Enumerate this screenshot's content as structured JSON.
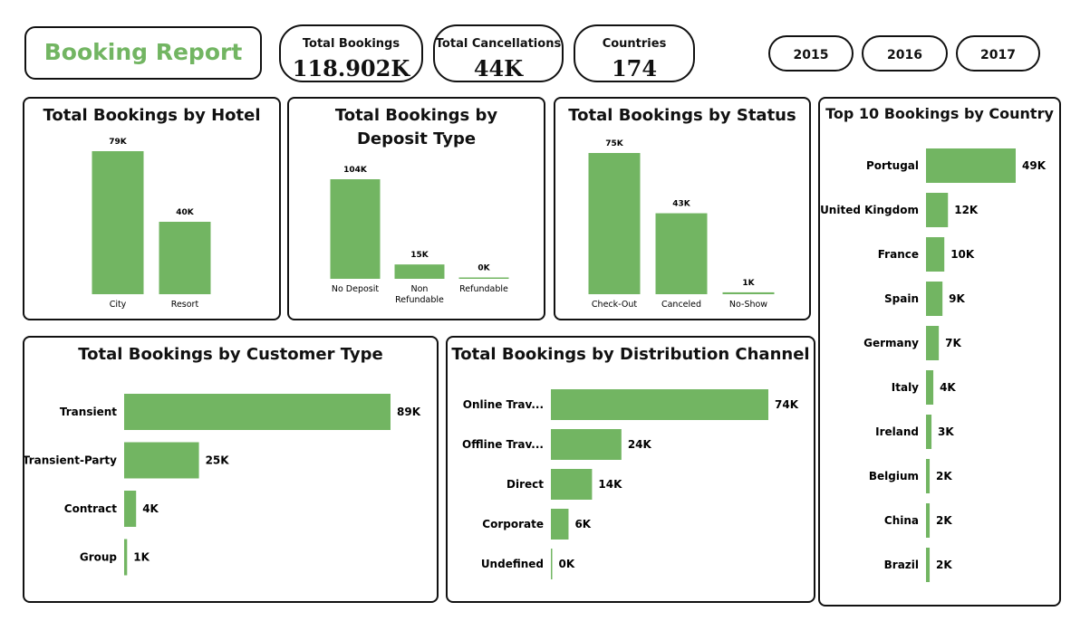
{
  "header": {
    "title": "Booking Report",
    "kpis": [
      {
        "label": "Total Bookings",
        "value": "118.902K"
      },
      {
        "label": "Total Cancellations",
        "value": "44K"
      },
      {
        "label": "Countries",
        "value": "174"
      }
    ],
    "years": [
      "2015",
      "2016",
      "2017"
    ]
  },
  "colors": {
    "bar": "#72b562",
    "title": "#72b562",
    "border": "#111111"
  },
  "chart_data": [
    {
      "id": "hotel",
      "type": "bar",
      "title": "Total Bookings by Hotel",
      "categories": [
        "City",
        "Resort"
      ],
      "values": [
        79,
        40
      ],
      "labels": [
        "79K",
        "40K"
      ]
    },
    {
      "id": "deposit",
      "type": "bar",
      "title": "Total Bookings by Deposit Type",
      "categories": [
        "No Deposit",
        "Non Refundable",
        "Refundable"
      ],
      "values": [
        104,
        15,
        0.2
      ],
      "labels": [
        "104K",
        "15K",
        "0K"
      ]
    },
    {
      "id": "status",
      "type": "bar",
      "title": "Total Bookings by Status",
      "categories": [
        "Check-Out",
        "Canceled",
        "No-Show"
      ],
      "values": [
        75,
        43,
        1
      ],
      "labels": [
        "75K",
        "43K",
        "1K"
      ]
    },
    {
      "id": "country",
      "type": "bar",
      "orientation": "horizontal",
      "title": "Top 10 Bookings by Country",
      "categories": [
        "Portugal",
        "United Kingdom",
        "France",
        "Spain",
        "Germany",
        "Italy",
        "Ireland",
        "Belgium",
        "China",
        "Brazil"
      ],
      "values": [
        49,
        12,
        10,
        9,
        7,
        4,
        3,
        2,
        2,
        2
      ],
      "labels": [
        "49K",
        "12K",
        "10K",
        "9K",
        "7K",
        "4K",
        "3K",
        "2K",
        "2K",
        "2K"
      ]
    },
    {
      "id": "customer",
      "type": "bar",
      "orientation": "horizontal",
      "title": "Total Bookings by Customer Type",
      "categories": [
        "Transient",
        "Transient-Party",
        "Contract",
        "Group"
      ],
      "values": [
        89,
        25,
        4,
        1
      ],
      "labels": [
        "89K",
        "25K",
        "4K",
        "1K"
      ]
    },
    {
      "id": "channel",
      "type": "bar",
      "orientation": "horizontal",
      "title": "Total Bookings by Distribution Channel",
      "categories": [
        "Online Trav...",
        "Offline Trav...",
        "Direct",
        "Corporate",
        "Undefined"
      ],
      "values": [
        74,
        24,
        14,
        6,
        0.2
      ],
      "labels": [
        "74K",
        "24K",
        "14K",
        "6K",
        "0K"
      ]
    }
  ]
}
